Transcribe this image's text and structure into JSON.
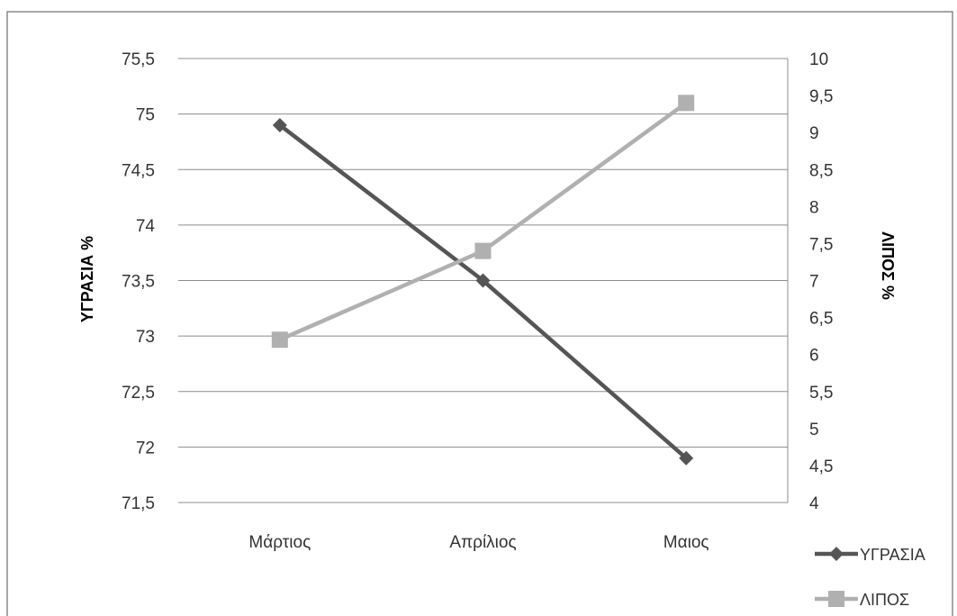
{
  "chart_data": {
    "type": "line",
    "categories": [
      "Μάρτιος",
      "Απρίλιος",
      "Μαιος"
    ],
    "series": [
      {
        "name": "ΥΓΡΑΣΙΑ",
        "axis": "left",
        "values": [
          74.9,
          73.5,
          71.9
        ],
        "color": "#555555",
        "marker": "diamond"
      },
      {
        "name": "ΛΙΠΟΣ",
        "axis": "right",
        "values": [
          6.2,
          7.4,
          9.4
        ],
        "color": "#b0b0b0",
        "marker": "square"
      }
    ],
    "ylabel": "ΥΓΡΑΣΙΑ %",
    "y2label": "ΛΙΠΟΣ %",
    "ylim": [
      71.5,
      75.5
    ],
    "y2lim": [
      4,
      10
    ],
    "yticks": [
      "71,5",
      "72",
      "72,5",
      "73",
      "73,5",
      "74",
      "74,5",
      "75",
      "75,5"
    ],
    "y2ticks": [
      "4",
      "4,5",
      "5",
      "5,5",
      "6",
      "6,5",
      "7",
      "7,5",
      "8",
      "8,5",
      "9",
      "9,5",
      "10"
    ],
    "grid": true,
    "legend_position": "bottom-right"
  }
}
